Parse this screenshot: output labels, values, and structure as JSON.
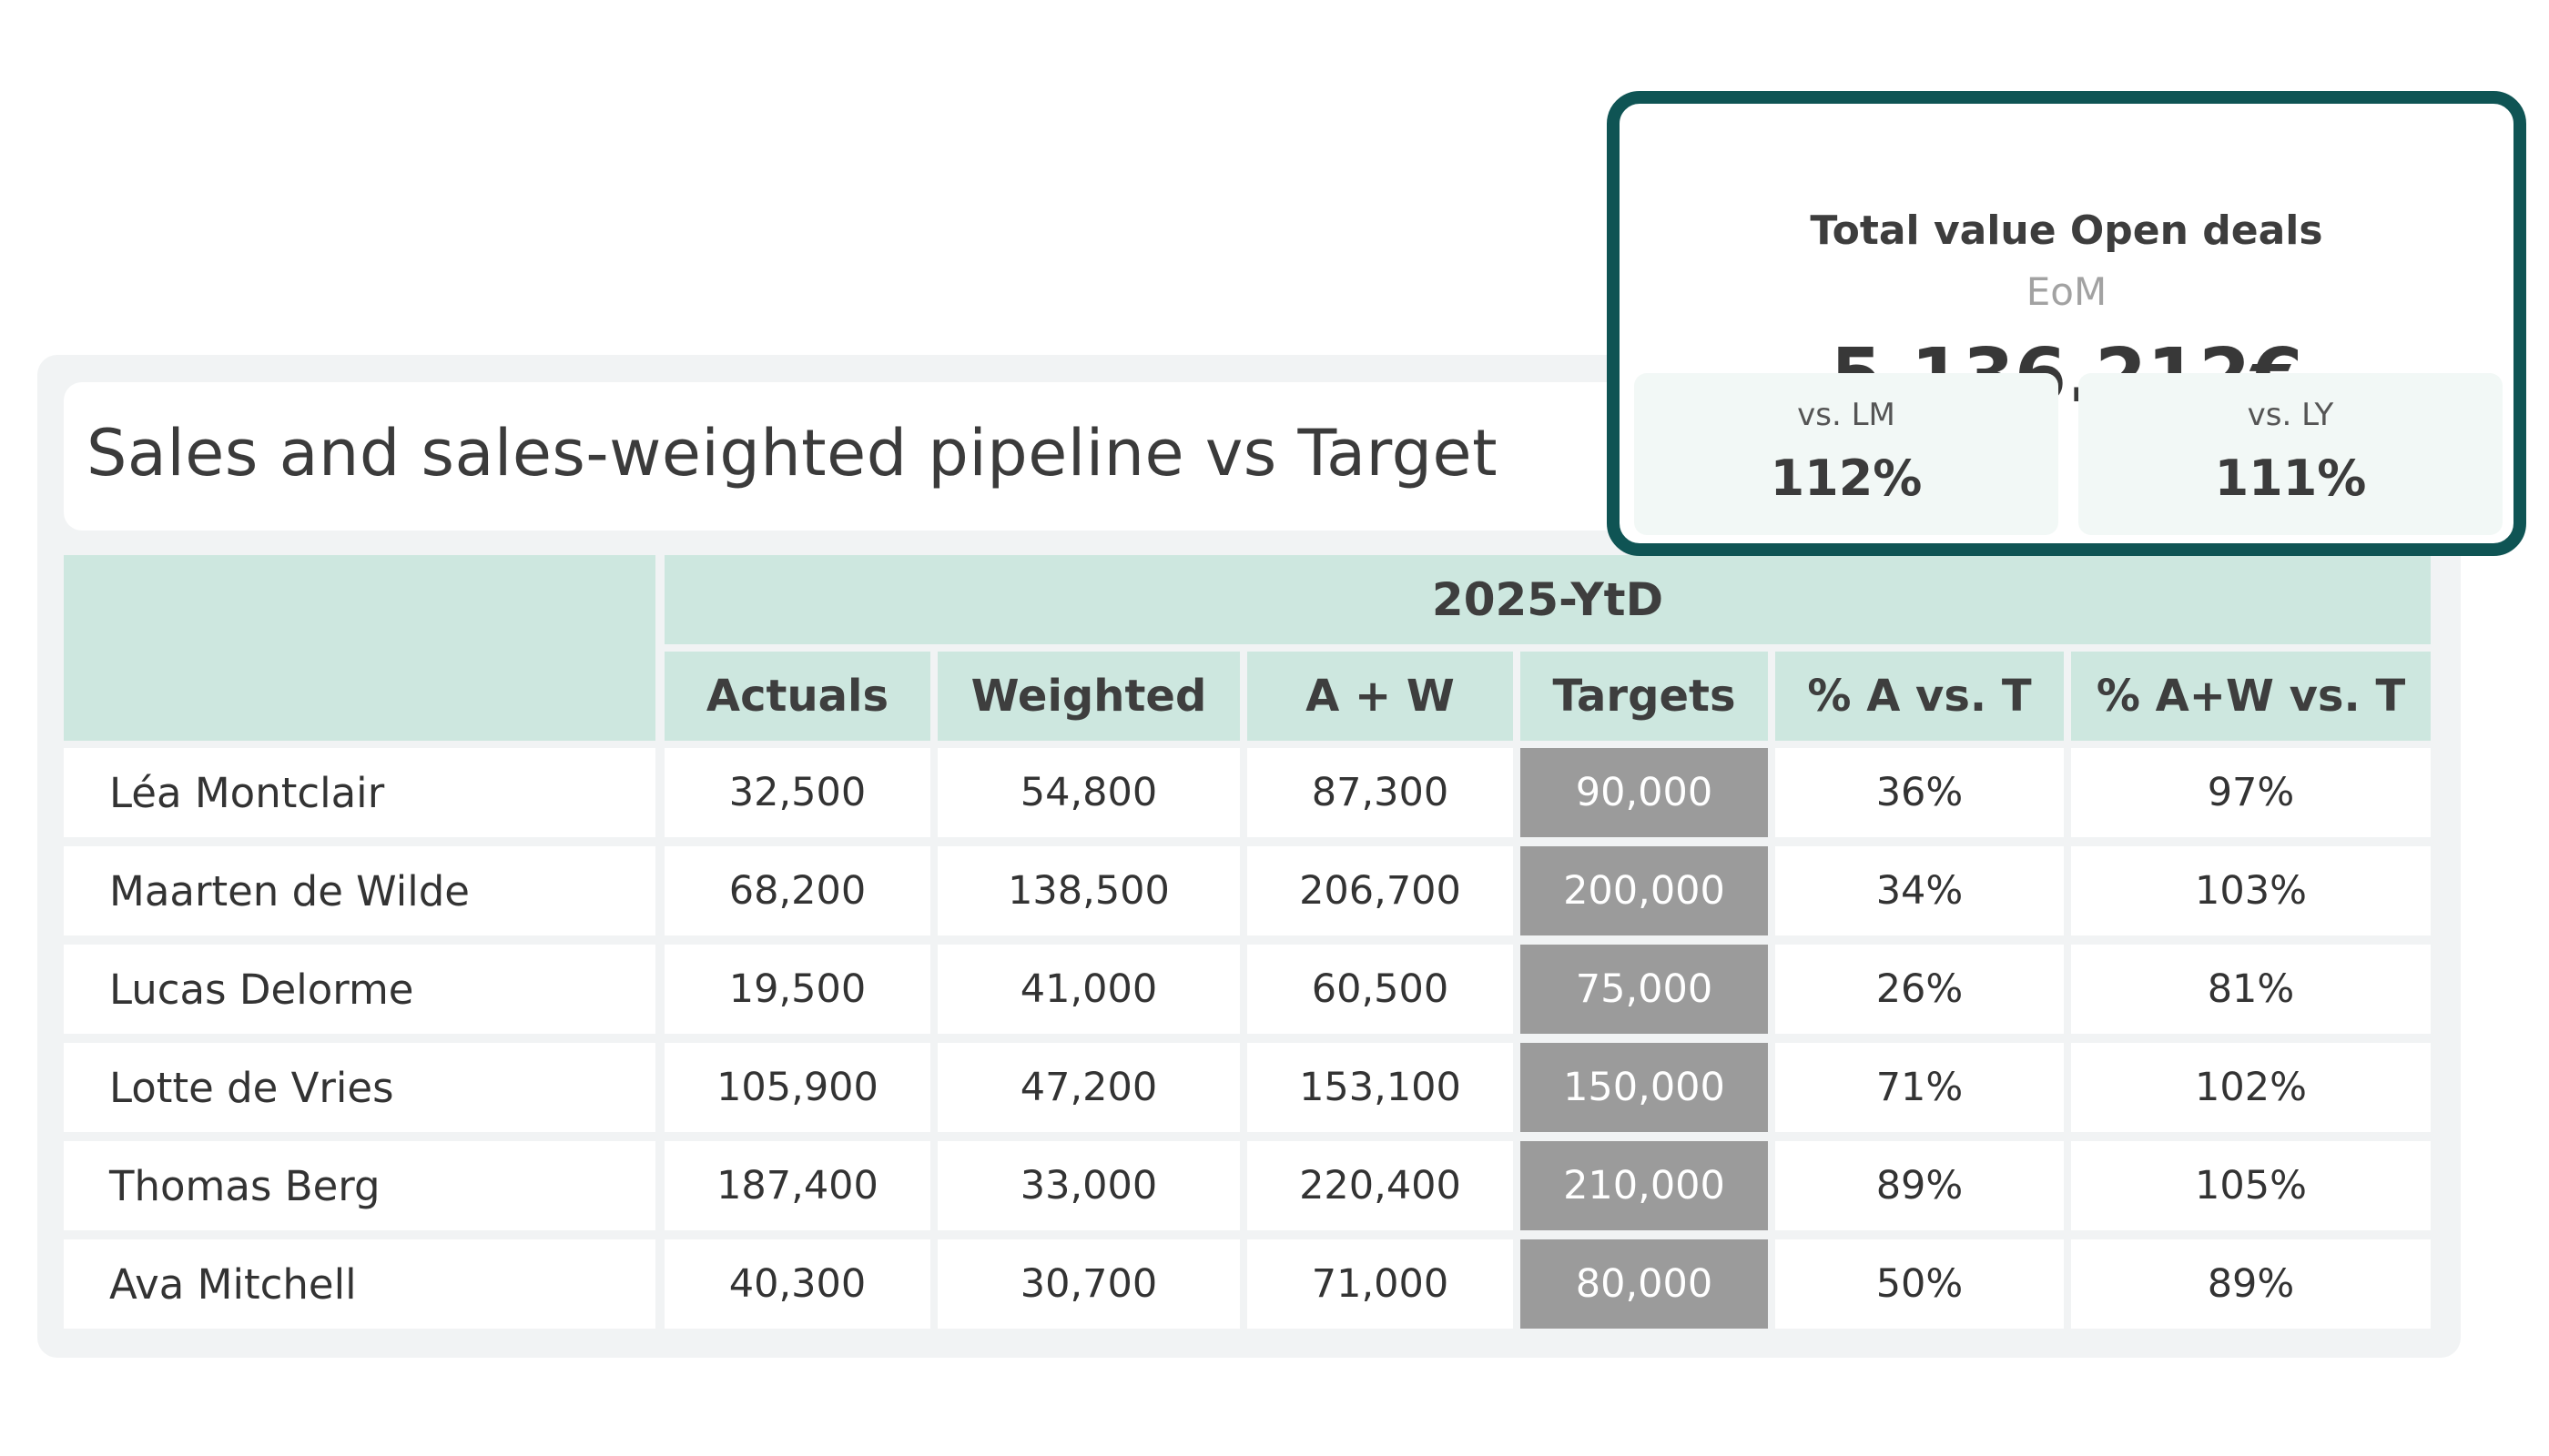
{
  "report": {
    "title": "Sales and sales-weighted pipeline vs Target"
  },
  "table": {
    "period": "2025-YtD",
    "columns": [
      "Actuals",
      "Weighted",
      "A + W",
      "Targets",
      "% A vs. T",
      "% A+W vs. T"
    ],
    "rows": [
      {
        "name": "Léa Montclair",
        "values": [
          "32,500",
          "54,800",
          "87,300",
          "90,000",
          "36%",
          "97%"
        ]
      },
      {
        "name": "Maarten de Wilde",
        "values": [
          "68,200",
          "138,500",
          "206,700",
          "200,000",
          "34%",
          "103%"
        ]
      },
      {
        "name": "Lucas Delorme",
        "values": [
          "19,500",
          "41,000",
          "60,500",
          "75,000",
          "26%",
          "81%"
        ]
      },
      {
        "name": "Lotte de Vries",
        "values": [
          "105,900",
          "47,200",
          "153,100",
          "150,000",
          "71%",
          "102%"
        ]
      },
      {
        "name": "Thomas Berg",
        "values": [
          "187,400",
          "33,000",
          "220,400",
          "210,000",
          "89%",
          "105%"
        ]
      },
      {
        "name": "Ava Mitchell",
        "values": [
          "40,300",
          "30,700",
          "71,000",
          "80,000",
          "50%",
          "89%"
        ]
      }
    ]
  },
  "kpi": {
    "title": "Total value Open deals",
    "subtitle": "EoM",
    "value": "5.136.212€",
    "comparisons": [
      {
        "label": "vs. LM",
        "value": "112%"
      },
      {
        "label": "vs. LY",
        "value": "111%"
      }
    ]
  },
  "colors": {
    "header_bg": "#cde7df",
    "target_bg": "#9b9b9b",
    "kpi_border": "#0f5454",
    "panel_bg": "#f1f3f4"
  }
}
